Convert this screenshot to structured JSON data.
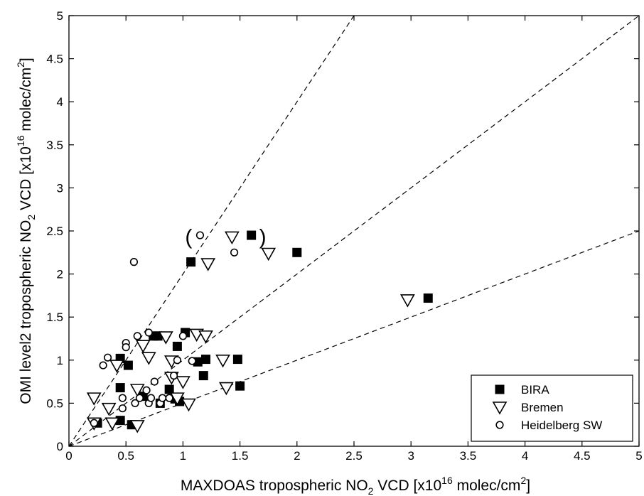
{
  "chart_data": {
    "type": "scatter",
    "title": "",
    "xlabel": {
      "pre": "MAXDOAS tropospheric NO",
      "sub": "2",
      "mid": " VCD [x10",
      "sup": "16",
      "post": " molec/cm",
      "sup2": "2",
      "end": "]"
    },
    "ylabel": {
      "pre": "OMI level2 tropospheric NO",
      "sub": "2",
      "mid": " VCD [x10",
      "sup": "16",
      "post": " molec/cm",
      "sup2": "2",
      "end": "]"
    },
    "xlim": [
      0,
      5
    ],
    "ylim": [
      0,
      5
    ],
    "xticks": [
      "0",
      "0.5",
      "1",
      "1.5",
      "2",
      "2.5",
      "3",
      "3.5",
      "4",
      "4.5",
      "5"
    ],
    "yticks": [
      "0",
      "0.5",
      "1",
      "1.5",
      "2",
      "2.5",
      "3",
      "3.5",
      "4",
      "4.5",
      "5"
    ],
    "grid": false,
    "legend_position": "bottom-right",
    "reference_lines": [
      {
        "slope": 2,
        "style": "dashed"
      },
      {
        "slope": 1,
        "style": "dashed"
      },
      {
        "slope": 0.5,
        "style": "dashed"
      }
    ],
    "annotations": [
      {
        "text": "(",
        "x": 1.05,
        "y": 2.43
      },
      {
        "text": ")",
        "x": 1.7,
        "y": 2.43
      }
    ],
    "series": [
      {
        "name": "BIRA",
        "marker": "filled-square",
        "points": [
          [
            0.45,
            1.02
          ],
          [
            0.52,
            0.94
          ],
          [
            0.74,
            1.28
          ],
          [
            0.78,
            1.28
          ],
          [
            0.95,
            1.16
          ],
          [
            1.02,
            1.32
          ],
          [
            1.13,
            0.98
          ],
          [
            1.2,
            1.01
          ],
          [
            1.18,
            0.82
          ],
          [
            1.48,
            1.01
          ],
          [
            1.5,
            0.7
          ],
          [
            0.45,
            0.68
          ],
          [
            0.45,
            0.3
          ],
          [
            0.55,
            0.25
          ],
          [
            0.65,
            0.58
          ],
          [
            0.8,
            0.5
          ],
          [
            0.88,
            0.66
          ],
          [
            0.93,
            0.55
          ],
          [
            0.97,
            0.52
          ],
          [
            0.25,
            0.27
          ],
          [
            1.07,
            2.14
          ],
          [
            1.6,
            2.45
          ],
          [
            2.0,
            2.25
          ],
          [
            3.15,
            1.72
          ]
        ]
      },
      {
        "name": "Bremen",
        "marker": "open-triangle-down",
        "points": [
          [
            0.22,
            0.56
          ],
          [
            0.22,
            0.27
          ],
          [
            0.38,
            0.27
          ],
          [
            0.35,
            0.44
          ],
          [
            0.42,
            0.94
          ],
          [
            0.6,
            0.66
          ],
          [
            0.6,
            0.24
          ],
          [
            0.65,
            1.17
          ],
          [
            0.7,
            1.03
          ],
          [
            0.85,
            1.27
          ],
          [
            0.9,
            0.99
          ],
          [
            0.9,
            0.8
          ],
          [
            0.95,
            0.56
          ],
          [
            1.0,
            0.75
          ],
          [
            1.05,
            0.49
          ],
          [
            1.12,
            1.3
          ],
          [
            1.2,
            1.28
          ],
          [
            1.35,
            1.0
          ],
          [
            1.38,
            0.68
          ],
          [
            1.22,
            2.12
          ],
          [
            1.43,
            2.43
          ],
          [
            1.75,
            2.24
          ],
          [
            2.97,
            1.7
          ]
        ]
      },
      {
        "name": "Heidelberg SW",
        "marker": "open-circle",
        "points": [
          [
            0.22,
            0.27
          ],
          [
            0.3,
            0.94
          ],
          [
            0.34,
            1.03
          ],
          [
            0.47,
            0.56
          ],
          [
            0.47,
            0.44
          ],
          [
            0.5,
            1.2
          ],
          [
            0.5,
            1.15
          ],
          [
            0.58,
            0.5
          ],
          [
            0.6,
            1.28
          ],
          [
            0.62,
            0.56
          ],
          [
            0.68,
            0.65
          ],
          [
            0.7,
            1.32
          ],
          [
            0.7,
            0.5
          ],
          [
            0.72,
            0.56
          ],
          [
            0.75,
            0.75
          ],
          [
            0.8,
            0.5
          ],
          [
            0.82,
            0.56
          ],
          [
            0.88,
            0.56
          ],
          [
            0.92,
            0.82
          ],
          [
            0.95,
            1.0
          ],
          [
            1.0,
            1.28
          ],
          [
            1.08,
            0.99
          ],
          [
            0.57,
            2.14
          ],
          [
            1.15,
            2.45
          ],
          [
            1.45,
            2.25
          ]
        ]
      }
    ]
  }
}
